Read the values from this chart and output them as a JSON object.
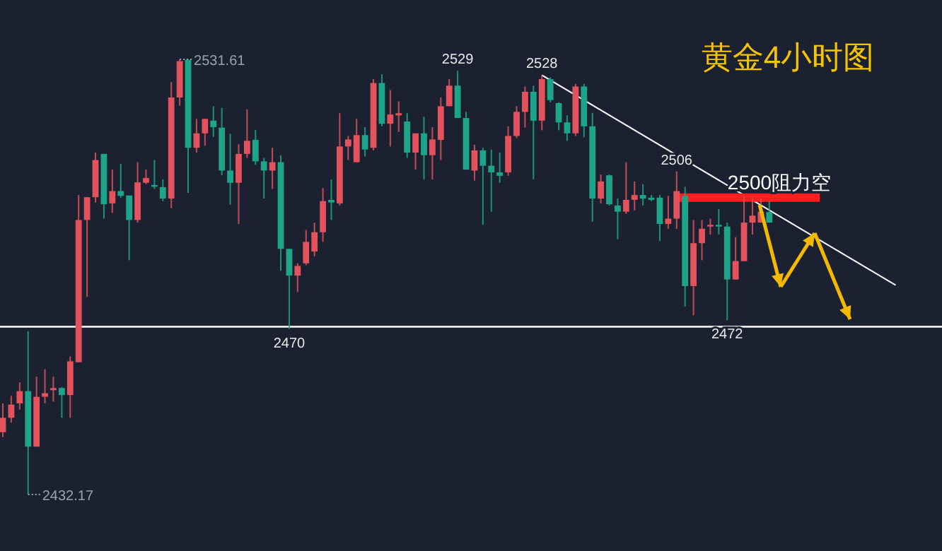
{
  "chart_data": {
    "type": "candlestick",
    "title": "黄金4小时图",
    "categories": [
      null,
      null,
      null,
      null,
      null,
      null,
      null,
      null,
      null,
      null,
      null,
      null,
      null,
      null,
      null,
      null,
      null,
      null,
      null,
      null,
      null,
      null,
      null,
      null,
      null,
      null,
      null,
      null,
      null,
      null,
      null,
      null,
      null,
      null,
      null,
      null,
      null,
      null,
      null,
      null,
      null,
      null,
      null,
      null,
      null,
      null,
      null,
      null,
      null,
      null,
      null,
      null,
      null,
      null,
      null,
      null,
      null,
      null,
      null,
      null,
      null,
      null,
      null,
      null,
      null,
      null,
      null,
      null,
      null,
      null,
      null,
      null,
      null,
      null,
      null,
      null,
      null,
      null,
      null,
      null,
      null,
      null,
      null,
      null,
      null,
      null,
      null,
      null,
      null,
      null,
      null,
      null,
      null,
      null,
      null,
      null,
      null,
      null,
      null,
      null,
      null,
      null,
      null,
      null,
      null,
      null,
      null,
      null
    ],
    "ohlc": [
      [
        2446.4,
        2453.0,
        2445.3,
        2449.7
      ],
      [
        2449.7,
        2454.7,
        2448.6,
        2452.7
      ],
      [
        2453.0,
        2457.8,
        2451.6,
        2455.8
      ],
      [
        2455.8,
        2469.5,
        2432.17,
        2443.1
      ],
      [
        2443.1,
        2459.1,
        2443.1,
        2454.5
      ],
      [
        2454.5,
        2460.8,
        2453.0,
        2455.3
      ],
      [
        2456.0,
        2459.1,
        2453.4,
        2456.5
      ],
      [
        2456.5,
        2456.7,
        2449.7,
        2454.9
      ],
      [
        2454.9,
        2463.7,
        2449.7,
        2462.6
      ],
      [
        2462.4,
        2500.6,
        2462.4,
        2494.9
      ],
      [
        2494.9,
        2500.1,
        2477.3,
        2500.1
      ],
      [
        2500.1,
        2510.3,
        2498.9,
        2508.6
      ],
      [
        2510.0,
        2510.0,
        2495.2,
        2498.5
      ],
      [
        2498.7,
        2506.4,
        2496.5,
        2501.5
      ],
      [
        2501.5,
        2507.7,
        2500.0,
        2500.4
      ],
      [
        2500.5,
        2500.5,
        2485.7,
        2494.9
      ],
      [
        2494.9,
        2508.1,
        2494.3,
        2503.5
      ],
      [
        2503.4,
        2506.4,
        2503.1,
        2504.5
      ],
      [
        2502.9,
        2508.6,
        2502.0,
        2502.5
      ],
      [
        2502.4,
        2504.2,
        2499.2,
        2499.8
      ],
      [
        2499.8,
        2526.4,
        2497.6,
        2522.9
      ],
      [
        2522.9,
        2531.61,
        2521.0,
        2531.2
      ],
      [
        2531.5,
        2531.5,
        2501.1,
        2511.4
      ],
      [
        2511.4,
        2518.0,
        2510.3,
        2514.7
      ],
      [
        2514.7,
        2518.0,
        2511.9,
        2518.0
      ],
      [
        2517.6,
        2520.9,
        2513.9,
        2516.1
      ],
      [
        2516.0,
        2520.5,
        2505.1,
        2506.2
      ],
      [
        2506.2,
        2514.6,
        2498.4,
        2503.4
      ],
      [
        2503.4,
        2512.2,
        2494.0,
        2510.0
      ],
      [
        2510.0,
        2520.2,
        2509.1,
        2513.0
      ],
      [
        2513.2,
        2515.5,
        2507.5,
        2508.3
      ],
      [
        2508.3,
        2509.1,
        2499.8,
        2506.2
      ],
      [
        2506.2,
        2511.4,
        2502.0,
        2508.1
      ],
      [
        2508.1,
        2509.7,
        2483.3,
        2488.3
      ],
      [
        2488.3,
        2488.3,
        2470,
        2482.2
      ],
      [
        2482.2,
        2485.0,
        2478.4,
        2484.4
      ],
      [
        2485.0,
        2492.6,
        2484.6,
        2489.9
      ],
      [
        2487.7,
        2494.3,
        2486.6,
        2492.1
      ],
      [
        2492.1,
        2502.2,
        2489.9,
        2499.2
      ],
      [
        2499.5,
        2504.2,
        2494.9,
        2498.9
      ],
      [
        2498.7,
        2519.3,
        2498.2,
        2511.7
      ],
      [
        2511.7,
        2514.1,
        2508.6,
        2513.3
      ],
      [
        2508.1,
        2518.0,
        2508.1,
        2514.3
      ],
      [
        2514.3,
        2516.1,
        2509.4,
        2511.0
      ],
      [
        2511.4,
        2527.1,
        2510.8,
        2526.2
      ],
      [
        2526.2,
        2528.2,
        2516.3,
        2516.9
      ],
      [
        2516.9,
        2524.6,
        2511.7,
        2519.0
      ],
      [
        2518.8,
        2522.0,
        2515.0,
        2519.3
      ],
      [
        2517.4,
        2519.3,
        2509.1,
        2510.3
      ],
      [
        2510.3,
        2514.7,
        2506.4,
        2514.7
      ],
      [
        2514.7,
        2518.5,
        2504.2,
        2509.7
      ],
      [
        2509.7,
        2516.1,
        2504.2,
        2513.3
      ],
      [
        2513.2,
        2522.9,
        2508.6,
        2520.9
      ],
      [
        2520.9,
        2527.1,
        2520.9,
        2525.6
      ],
      [
        2525.6,
        2529,
        2518.2,
        2518.2
      ],
      [
        2518.2,
        2519.6,
        2506.4,
        2506.4
      ],
      [
        2506.2,
        2512.1,
        2503.9,
        2510.8
      ],
      [
        2510.8,
        2511.4,
        2493.8,
        2507.3
      ],
      [
        2507.3,
        2511.0,
        2496.8,
        2505.8
      ],
      [
        2505.8,
        2510.3,
        2503.4,
        2505.0
      ],
      [
        2505.8,
        2516.3,
        2505.0,
        2514.1
      ],
      [
        2514.1,
        2520.9,
        2513.6,
        2519.6
      ],
      [
        2519.6,
        2525.4,
        2516.0,
        2524.2
      ],
      [
        2524.2,
        2525.6,
        2504.2,
        2517.6
      ],
      [
        2517.6,
        2528,
        2515.4,
        2527.1
      ],
      [
        2527.1,
        2527.5,
        2521.8,
        2522.3
      ],
      [
        2521.6,
        2521.8,
        2515.4,
        2517.2
      ],
      [
        2517.2,
        2518.8,
        2513.0,
        2514.7
      ],
      [
        2514.7,
        2526.0,
        2514.1,
        2525.4
      ],
      [
        2525.4,
        2526.0,
        2513.8,
        2516.3
      ],
      [
        2516.3,
        2519.4,
        2494.5,
        2499.8
      ],
      [
        2499.8,
        2505.3,
        2498.7,
        2503.7
      ],
      [
        2505.1,
        2505.3,
        2498.2,
        2498.5
      ],
      [
        2498.2,
        2499.8,
        2490.5,
        2496.8
      ],
      [
        2496.8,
        2508.1,
        2496.3,
        2499.5
      ],
      [
        2499.5,
        2503.7,
        2497.1,
        2500.6
      ],
      [
        2500.6,
        2503.1,
        2498.2,
        2499.8
      ],
      [
        2500.0,
        2500.6,
        2499.2,
        2499.5
      ],
      [
        2500.0,
        2500.6,
        2490.1,
        2494.0
      ],
      [
        2494.0,
        2500.4,
        2492.9,
        2495.2
      ],
      [
        2495.2,
        2506,
        2492.9,
        2501.5
      ],
      [
        2500.4,
        2502.5,
        2475.1,
        2479.8
      ],
      [
        2479.8,
        2494.9,
        2473.1,
        2489.6
      ],
      [
        2489.6,
        2494.9,
        2485.7,
        2492.9
      ],
      [
        2493.4,
        2495.2,
        2491.6,
        2493.8
      ],
      [
        2493.8,
        2497.4,
        2491.6,
        2493.4
      ],
      [
        2493.4,
        2494.3,
        2472,
        2481.3
      ],
      [
        2481.3,
        2491.0,
        2481.3,
        2485.5
      ],
      [
        2485.5,
        2500.4,
        2485.5,
        2494.3
      ],
      [
        2494.3,
        2499.8,
        2491.6,
        2495.9
      ],
      [
        2494.3,
        2499.8,
        2494.3,
        2496.8
      ],
      [
        2496.7,
        2499.2,
        2494.3,
        2494.3
      ],
      null,
      null,
      null,
      null,
      null,
      null,
      null,
      null,
      null,
      null,
      null,
      null,
      null,
      null,
      null,
      null
    ],
    "colors": [
      "#e2535d",
      "#e2535d",
      "#e2535d",
      "#1ea589",
      "#e2535d",
      "#e2535d",
      "#e2535d",
      "#1ea589",
      "#e2535d",
      "#e2535d",
      "#e2535d",
      "#e2535d",
      "#1ea589",
      "#e2535d",
      "#1ea589",
      "#1ea589",
      "#e2535d",
      "#e2535d",
      "#1ea589",
      "#1ea589",
      "#e2535d",
      "#e2535d",
      "#1ea589",
      "#e2535d",
      "#e2535d",
      "#1ea589",
      "#1ea589",
      "#1ea589",
      "#e2535d",
      "#e2535d",
      "#1ea589",
      "#1ea589",
      "#e2535d",
      "#1ea589",
      "#1ea589",
      "#e2535d",
      "#e2535d",
      "#e2535d",
      "#e2535d",
      "#1ea589",
      "#e2535d",
      "#e2535d",
      "#e2535d",
      "#1ea589",
      "#e2535d",
      "#1ea589",
      "#e2535d",
      "#e2535d",
      "#1ea589",
      "#e2535d",
      "#1ea589",
      "#e2535d",
      "#e2535d",
      "#e2535d",
      "#1ea589",
      "#1ea589",
      "#e2535d",
      "#1ea589",
      "#1ea589",
      "#1ea589",
      "#e2535d",
      "#e2535d",
      "#e2535d",
      "#1ea589",
      "#e2535d",
      "#1ea589",
      "#1ea589",
      "#1ea589",
      "#e2535d",
      "#1ea589",
      "#1ea589",
      "#e2535d",
      "#1ea589",
      "#1ea589",
      "#e2535d",
      "#e2535d",
      "#1ea589",
      "#1ea589",
      "#1ea589",
      "#e2535d",
      "#e2535d",
      "#1ea589",
      "#e2535d",
      "#e2535d",
      "#e2535d",
      "#1ea589",
      "#1ea589",
      "#e2535d",
      "#e2535d",
      "#e2535d",
      "#e2535d",
      "#1ea589",
      null,
      null,
      null,
      null,
      null,
      null,
      null,
      null,
      null,
      null,
      null,
      null,
      null,
      null,
      null,
      null
    ],
    "series": [
      {
        "type": "line",
        "values": [
          null,
          null,
          null,
          null,
          null,
          null,
          null,
          null,
          null,
          null,
          null,
          null,
          null,
          null,
          null,
          null,
          null,
          null,
          null,
          null,
          null,
          null,
          null,
          null,
          null,
          null,
          null,
          null,
          null,
          null,
          null,
          null,
          null,
          null,
          null,
          null,
          null,
          null,
          null,
          null,
          null,
          null,
          null,
          null,
          null,
          null,
          null,
          null,
          null,
          null,
          null,
          null,
          null,
          null,
          null,
          null,
          null,
          null,
          null,
          null,
          null,
          null,
          null,
          null,
          2528,
          null,
          null,
          null,
          null,
          null,
          null,
          null,
          null,
          null,
          null,
          null,
          null,
          null,
          null,
          null,
          null,
          null,
          null,
          null,
          null,
          null,
          null,
          null,
          null,
          null,
          null,
          null,
          null,
          null,
          null,
          null,
          null,
          null,
          null,
          null,
          null,
          null,
          null,
          null,
          null,
          null,
          2480,
          null
        ],
        "color": "#ffffff"
      },
      {
        "type": "line",
        "values": [
          null,
          null,
          null,
          null,
          null,
          null,
          null,
          null,
          null,
          null,
          null,
          null,
          null,
          null,
          null,
          null,
          null,
          null,
          null,
          null,
          null,
          null,
          null,
          null,
          null,
          null,
          null,
          null,
          null,
          null,
          null,
          null,
          null,
          null,
          null,
          null,
          null,
          null,
          null,
          null,
          null,
          null,
          null,
          null,
          null,
          null,
          null,
          null,
          null,
          null,
          null,
          null,
          null,
          null,
          null,
          null,
          null,
          null,
          null,
          null,
          null,
          null,
          null,
          null,
          null,
          null,
          null,
          null,
          null,
          null,
          null,
          null,
          null,
          null,
          null,
          null,
          null,
          null,
          null,
          null,
          2500,
          null,
          null,
          null,
          null,
          null,
          null,
          null,
          null,
          null,
          null,
          null,
          null,
          null,
          null,
          null,
          null,
          2500,
          null,
          null,
          null,
          null,
          null,
          null,
          null,
          null,
          null,
          null
        ],
        "color": "#ff1e1e"
      }
    ],
    "ref_lines": [
      {
        "axis": "y",
        "value": 2470.5,
        "color": "#ffffff"
      }
    ],
    "annotations": [
      "2531.61",
      {
        "text": "2529",
        "y": 2529
      },
      {
        "text": "2528",
        "y": 2528
      },
      {
        "text": "2506",
        "y": 2506
      },
      {
        "text": "2470",
        "y": 2470
      },
      {
        "text": "2472",
        "y": 2472
      },
      "2432.17",
      {
        "text": "2500阻力空",
        "y": 2500
      }
    ]
  }
}
